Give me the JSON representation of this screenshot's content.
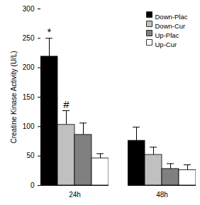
{
  "chart_data": {
    "type": "bar",
    "y_label": "Creatine Kinase Activity (U/L)",
    "categories": [
      "24h",
      "48h"
    ],
    "series": [
      {
        "name": "Down-Plac",
        "color": "#000000",
        "values": [
          219,
          76
        ],
        "errors": [
          31,
          23
        ]
      },
      {
        "name": "Down-Cur",
        "color": "#c0c0c0",
        "values": [
          103,
          52
        ],
        "errors": [
          24,
          13
        ]
      },
      {
        "name": "Up-Plac",
        "color": "#808080",
        "values": [
          86,
          28
        ],
        "errors": [
          20,
          9
        ]
      },
      {
        "name": "Up-Cur",
        "color": "#ffffff",
        "values": [
          46,
          26
        ],
        "errors": [
          8,
          9
        ]
      }
    ],
    "annotations": [
      {
        "text": "*",
        "category": "24h",
        "series": "Down-Plac"
      },
      {
        "text": "#",
        "category": "24h",
        "series": "Down-Cur"
      }
    ],
    "ylim": [
      0,
      300
    ],
    "yticks": [
      0,
      50,
      100,
      150,
      200,
      250,
      300
    ],
    "legend": "upper right"
  }
}
